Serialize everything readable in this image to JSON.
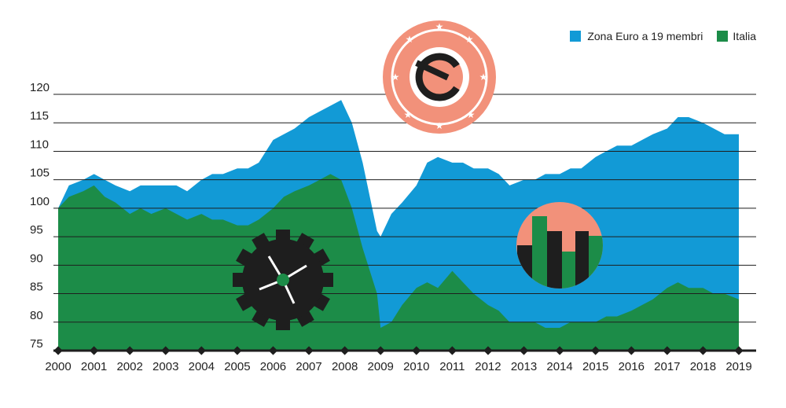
{
  "chart_data": {
    "type": "area",
    "title": "",
    "xlabel": "",
    "ylabel": "",
    "ylim": [
      75,
      122
    ],
    "yticks": [
      75,
      80,
      85,
      90,
      95,
      100,
      105,
      110,
      115,
      120
    ],
    "xlim": [
      2000,
      2019
    ],
    "x_ticks": [
      2000,
      2001,
      2002,
      2003,
      2004,
      2005,
      2006,
      2007,
      2008,
      2009,
      2010,
      2011,
      2012,
      2013,
      2014,
      2015,
      2016,
      2017,
      2018,
      2019
    ],
    "grid": true,
    "legend_position": "top-right",
    "colors": {
      "eurozone": "#129ad6",
      "italia": "#1c8c48",
      "accent": "#f2917a",
      "dark": "#1e1e1e"
    },
    "series": [
      {
        "name": "Zona Euro a 19 membri",
        "color": "#129ad6",
        "x": [
          2000,
          2000.3,
          2000.7,
          2001,
          2001.3,
          2001.6,
          2002,
          2002.3,
          2002.6,
          2003,
          2003.3,
          2003.6,
          2004,
          2004.3,
          2004.6,
          2005,
          2005.3,
          2005.6,
          2006,
          2006.3,
          2006.6,
          2007,
          2007.3,
          2007.6,
          2007.9,
          2008.2,
          2008.5,
          2008.9,
          2009.0,
          2009.3,
          2009.6,
          2010,
          2010.3,
          2010.6,
          2011,
          2011.3,
          2011.6,
          2012,
          2012.3,
          2012.6,
          2013,
          2013.3,
          2013.6,
          2014,
          2014.3,
          2014.6,
          2015,
          2015.3,
          2015.6,
          2016,
          2016.3,
          2016.6,
          2017,
          2017.3,
          2017.6,
          2018,
          2018.3,
          2018.6,
          2019
        ],
        "values": [
          100,
          104,
          105,
          106,
          105,
          104,
          103,
          104,
          104,
          104,
          104,
          103,
          105,
          106,
          106,
          107,
          107,
          108,
          112,
          113,
          114,
          116,
          117,
          118,
          119,
          115,
          108,
          96,
          95,
          99,
          101,
          104,
          108,
          109,
          108,
          108,
          107,
          107,
          106,
          104,
          105,
          105,
          106,
          106,
          107,
          107,
          109,
          110,
          111,
          111,
          112,
          113,
          114,
          116,
          116,
          115,
          114,
          113,
          113
        ]
      },
      {
        "name": "Italia",
        "color": "#1c8c48",
        "x": [
          2000,
          2000.3,
          2000.7,
          2001,
          2001.3,
          2001.6,
          2002,
          2002.3,
          2002.6,
          2003,
          2003.3,
          2003.6,
          2004,
          2004.3,
          2004.6,
          2005,
          2005.3,
          2005.6,
          2006,
          2006.3,
          2006.6,
          2007,
          2007.3,
          2007.6,
          2007.9,
          2008.2,
          2008.5,
          2008.9,
          2009.0,
          2009.3,
          2009.6,
          2010,
          2010.3,
          2010.6,
          2011,
          2011.3,
          2011.6,
          2012,
          2012.3,
          2012.6,
          2013,
          2013.3,
          2013.6,
          2014,
          2014.3,
          2014.6,
          2015,
          2015.3,
          2015.6,
          2016,
          2016.3,
          2016.6,
          2017,
          2017.3,
          2017.6,
          2018,
          2018.3,
          2018.6,
          2019
        ],
        "values": [
          100,
          102,
          103,
          104,
          102,
          101,
          99,
          100,
          99,
          100,
          99,
          98,
          99,
          98,
          98,
          97,
          97,
          98,
          100,
          102,
          103,
          104,
          105,
          106,
          105,
          100,
          93,
          85,
          79,
          80,
          83,
          86,
          87,
          86,
          89,
          87,
          85,
          83,
          82,
          80,
          80,
          80,
          79,
          79,
          80,
          80,
          80,
          81,
          81,
          82,
          83,
          84,
          86,
          87,
          86,
          86,
          85,
          85,
          84
        ]
      }
    ]
  }
}
